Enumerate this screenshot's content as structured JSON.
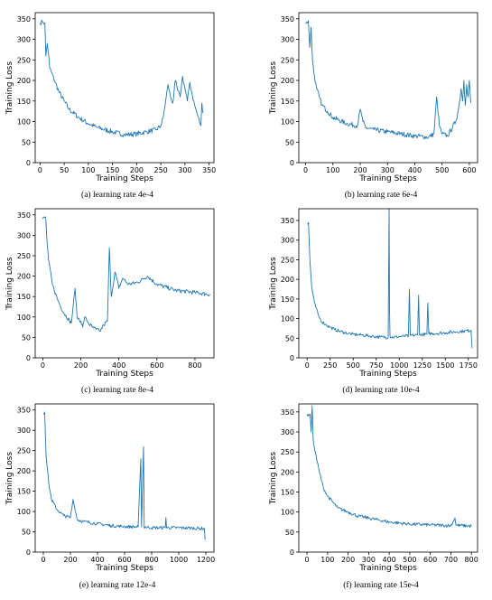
{
  "chart_data": [
    {
      "type": "line",
      "caption": "(a) learning rate 4e-4",
      "xlabel": "Training Steps",
      "ylabel": "Training Loss",
      "xlim": [
        -10,
        360
      ],
      "ylim": [
        0,
        365
      ],
      "xticks": [
        0,
        50,
        100,
        150,
        200,
        250,
        300,
        350
      ],
      "yticks": [
        0,
        50,
        100,
        150,
        200,
        250,
        300,
        350
      ],
      "x": [
        0,
        5,
        10,
        12,
        15,
        18,
        20,
        30,
        40,
        50,
        60,
        80,
        100,
        120,
        150,
        175,
        200,
        220,
        240,
        250,
        255,
        260,
        265,
        270,
        275,
        280,
        285,
        290,
        295,
        300,
        305,
        310,
        315,
        320,
        325,
        330,
        333,
        335,
        338
      ],
      "values": [
        340,
        343,
        340,
        260,
        290,
        260,
        230,
        200,
        170,
        150,
        130,
        110,
        95,
        85,
        75,
        68,
        70,
        75,
        80,
        90,
        110,
        150,
        190,
        160,
        145,
        200,
        175,
        160,
        210,
        180,
        150,
        195,
        165,
        140,
        120,
        100,
        90,
        145,
        120
      ],
      "noise": 6
    },
    {
      "type": "line",
      "caption": "(b) learning rate 6e-4",
      "xlabel": "Training Steps",
      "ylabel": "Training Loss",
      "xlim": [
        -25,
        630
      ],
      "ylim": [
        0,
        365
      ],
      "xticks": [
        0,
        100,
        200,
        300,
        400,
        500,
        600
      ],
      "yticks": [
        0,
        50,
        100,
        150,
        200,
        250,
        300,
        350
      ],
      "x": [
        0,
        10,
        15,
        20,
        25,
        30,
        40,
        50,
        60,
        80,
        100,
        150,
        190,
        200,
        210,
        220,
        250,
        300,
        350,
        400,
        450,
        470,
        480,
        490,
        500,
        520,
        550,
        560,
        570,
        575,
        580,
        585,
        590,
        595,
        600,
        605
      ],
      "values": [
        340,
        345,
        280,
        330,
        250,
        220,
        180,
        160,
        140,
        125,
        110,
        95,
        90,
        130,
        100,
        85,
        80,
        75,
        70,
        65,
        62,
        70,
        160,
        90,
        70,
        65,
        100,
        130,
        180,
        150,
        200,
        140,
        190,
        160,
        200,
        145
      ],
      "noise": 6
    },
    {
      "type": "line",
      "caption": "(c) learning rate 8e-4",
      "xlabel": "Training Steps",
      "ylabel": "Training Loss",
      "xlim": [
        -40,
        900
      ],
      "ylim": [
        0,
        365
      ],
      "xticks": [
        0,
        200,
        400,
        600,
        800
      ],
      "yticks": [
        0,
        50,
        100,
        150,
        200,
        250,
        300,
        350
      ],
      "x": [
        0,
        15,
        20,
        30,
        50,
        80,
        110,
        150,
        170,
        180,
        200,
        210,
        220,
        240,
        260,
        280,
        300,
        320,
        340,
        350,
        360,
        380,
        400,
        420,
        450,
        500,
        550,
        600,
        700,
        800,
        880
      ],
      "values": [
        340,
        345,
        300,
        240,
        180,
        140,
        110,
        85,
        170,
        100,
        90,
        75,
        100,
        85,
        75,
        70,
        65,
        80,
        90,
        270,
        150,
        210,
        170,
        195,
        180,
        185,
        200,
        180,
        165,
        160,
        155
      ],
      "noise": 5
    },
    {
      "type": "line",
      "caption": "(d) learning rate 10e-4",
      "xlabel": "Training Steps",
      "ylabel": "Training Loss",
      "xlim": [
        -90,
        1850
      ],
      "ylim": [
        0,
        380
      ],
      "xticks": [
        0,
        250,
        500,
        750,
        1000,
        1250,
        1500,
        1750
      ],
      "yticks": [
        0,
        50,
        100,
        150,
        200,
        250,
        300,
        350
      ],
      "x": [
        0,
        15,
        30,
        50,
        80,
        120,
        150,
        200,
        250,
        300,
        350,
        400,
        450,
        500,
        600,
        700,
        800,
        880,
        890,
        895,
        900,
        910,
        1000,
        1100,
        1110,
        1120,
        1200,
        1210,
        1220,
        1300,
        1310,
        1320,
        1400,
        1500,
        1600,
        1700,
        1780,
        1790
      ],
      "values": [
        340,
        345,
        250,
        180,
        140,
        110,
        95,
        85,
        78,
        72,
        68,
        65,
        62,
        60,
        58,
        55,
        53,
        52,
        380,
        120,
        55,
        52,
        54,
        56,
        175,
        57,
        58,
        160,
        59,
        60,
        140,
        62,
        62,
        64,
        66,
        68,
        70,
        25
      ],
      "noise": 4
    },
    {
      "type": "line",
      "caption": "(e) learning rate 12e-4",
      "xlabel": "Training Steps",
      "ylabel": "Training Loss",
      "xlim": [
        -60,
        1260
      ],
      "ylim": [
        0,
        365
      ],
      "xticks": [
        0,
        200,
        400,
        600,
        800,
        1000,
        1200
      ],
      "yticks": [
        0,
        50,
        100,
        150,
        200,
        250,
        300,
        350
      ],
      "x": [
        0,
        10,
        20,
        40,
        60,
        100,
        150,
        200,
        220,
        250,
        300,
        400,
        500,
        600,
        700,
        720,
        725,
        740,
        745,
        750,
        800,
        900,
        905,
        910,
        1000,
        1100,
        1190,
        1195
      ],
      "values": [
        340,
        345,
        240,
        170,
        130,
        105,
        90,
        85,
        130,
        80,
        75,
        70,
        65,
        63,
        62,
        230,
        62,
        260,
        61,
        62,
        60,
        60,
        85,
        60,
        60,
        59,
        58,
        30
      ],
      "noise": 4
    },
    {
      "type": "line",
      "caption": "(f) learning rate 15e-4",
      "xlabel": "Training Steps",
      "ylabel": "Training Loss",
      "xlim": [
        -40,
        830
      ],
      "ylim": [
        0,
        370
      ],
      "xticks": [
        0,
        100,
        200,
        300,
        400,
        500,
        600,
        700,
        800
      ],
      "yticks": [
        0,
        50,
        100,
        150,
        200,
        250,
        300,
        350
      ],
      "x": [
        0,
        15,
        20,
        25,
        30,
        40,
        60,
        80,
        100,
        150,
        200,
        250,
        300,
        350,
        400,
        500,
        600,
        700,
        720,
        725,
        800
      ],
      "values": [
        340,
        345,
        300,
        365,
        280,
        250,
        200,
        160,
        140,
        110,
        100,
        90,
        85,
        80,
        75,
        70,
        68,
        66,
        85,
        67,
        65
      ],
      "noise": 4
    }
  ]
}
